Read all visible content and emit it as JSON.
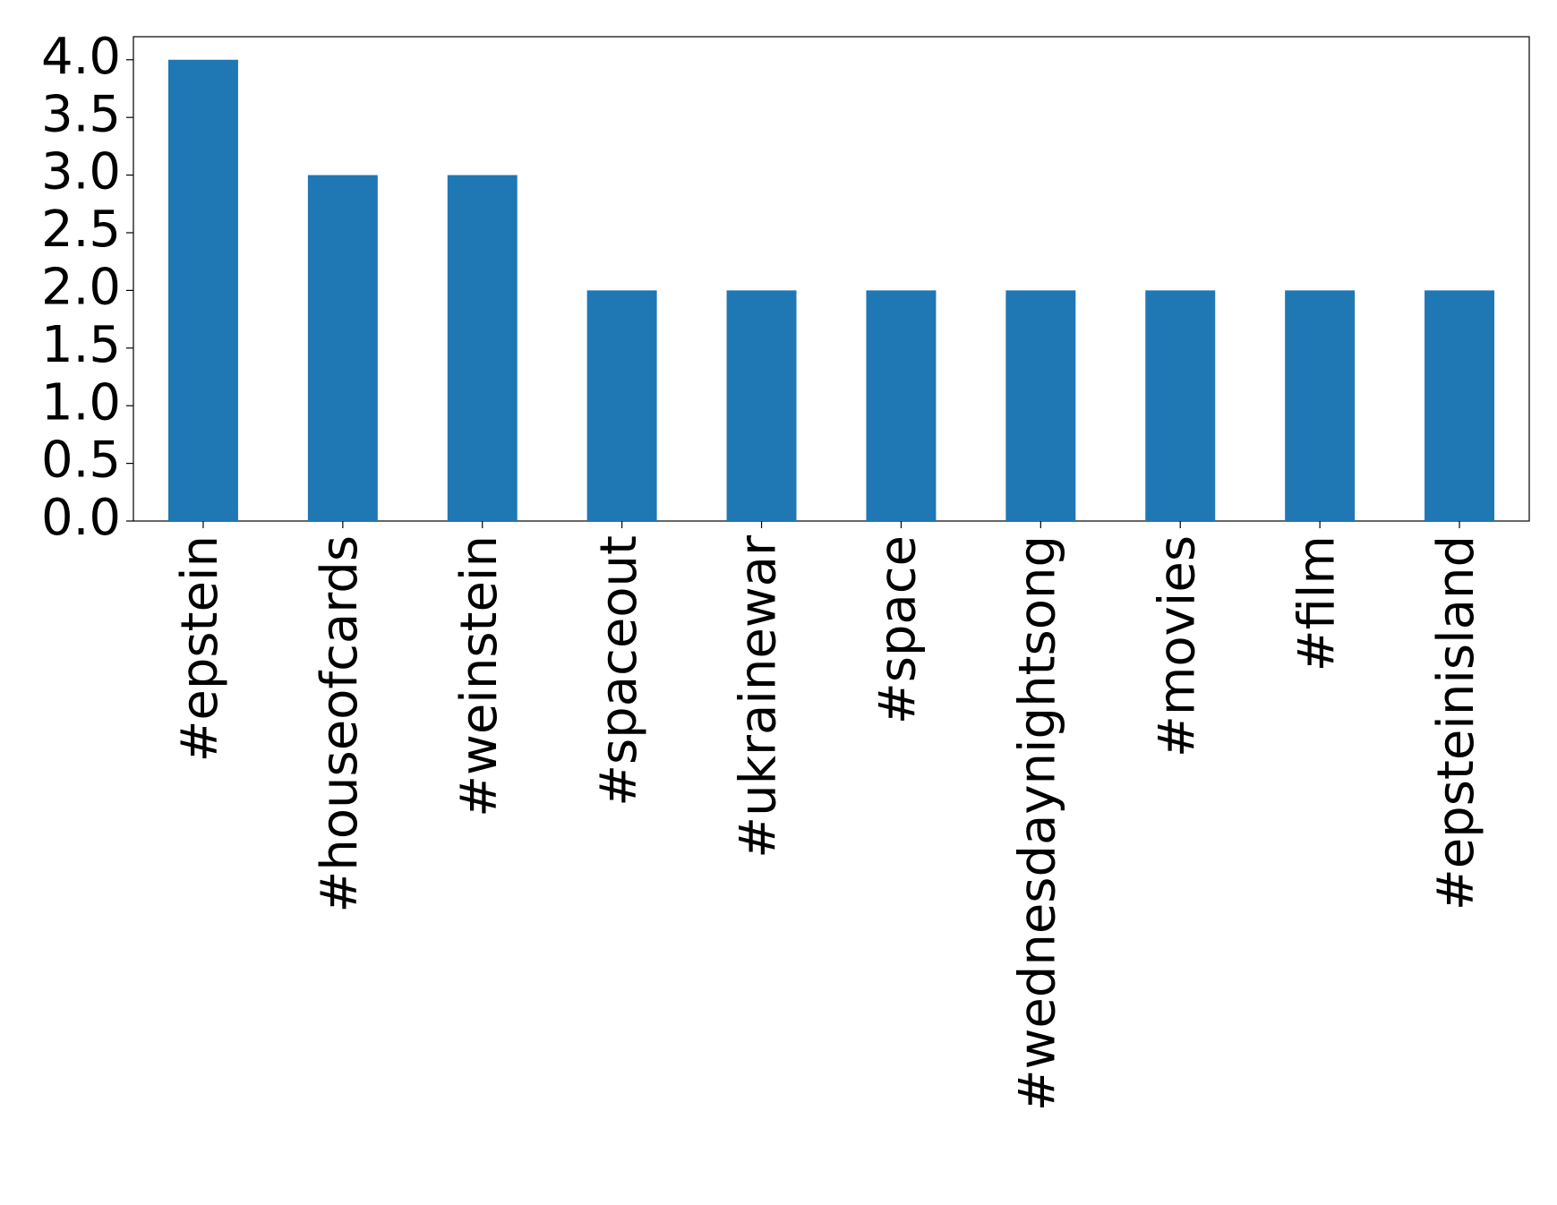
{
  "chart_data": {
    "type": "bar",
    "categories": [
      "#epstein",
      "#houseofcards",
      "#weinstein",
      "#spaceout",
      "#ukrainewar",
      "#space",
      "#wednesdaynightsong",
      "#movies",
      "#film",
      "#epsteinisland"
    ],
    "values": [
      4,
      3,
      3,
      2,
      2,
      2,
      2,
      2,
      2,
      2
    ],
    "color": "#1f77b4",
    "ylim": [
      0,
      4.2
    ],
    "yticks": [
      {
        "value": 0,
        "label": "0.0"
      },
      0.5,
      {
        "value": 1,
        "label": "1.0"
      },
      1.5,
      {
        "value": 2,
        "label": "2.0"
      },
      2.5,
      {
        "value": 3,
        "label": "3.0"
      },
      3.5,
      {
        "value": 4,
        "label": "4.0"
      }
    ],
    "grid": false
  }
}
